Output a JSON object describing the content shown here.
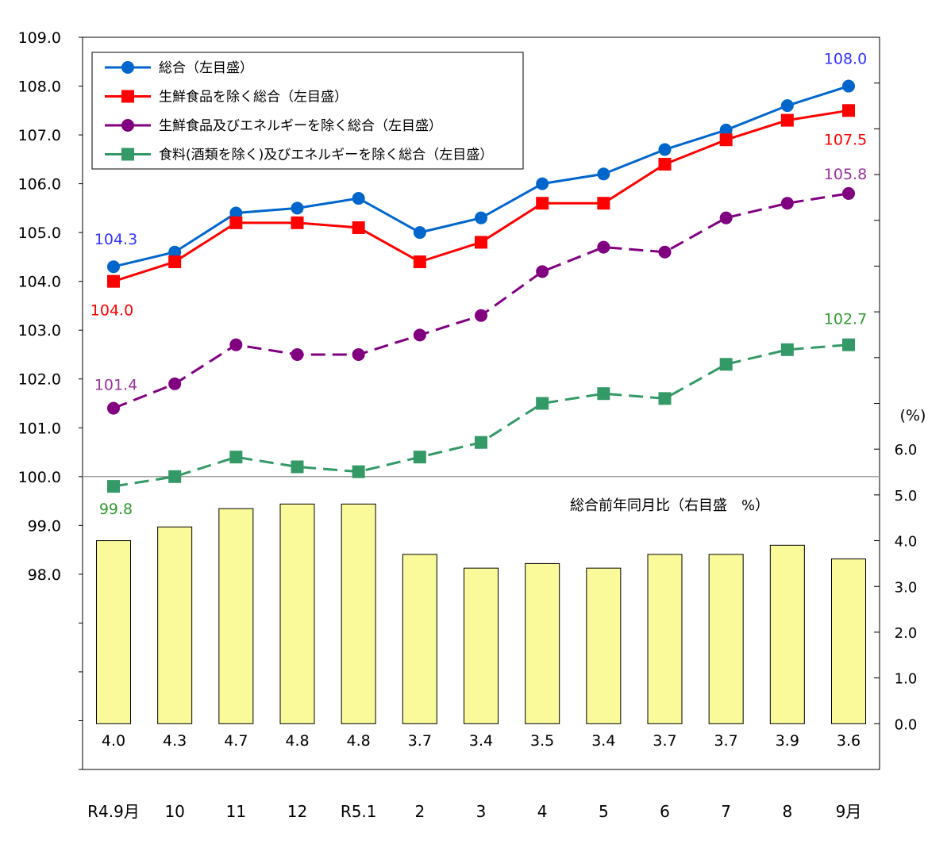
{
  "chart_data": {
    "type": "line+bar",
    "categories": [
      "R4.9月",
      "10",
      "11",
      "12",
      "R5.1",
      "2",
      "3",
      "4",
      "5",
      "6",
      "7",
      "8",
      "9月"
    ],
    "left_axis": {
      "range": [
        94,
        109
      ],
      "tick_labels": [
        "98.0",
        "99.0",
        "100.0",
        "101.0",
        "102.0",
        "103.0",
        "104.0",
        "105.0",
        "106.0",
        "107.0",
        "108.0",
        "109.0"
      ],
      "reference_line": 100.0
    },
    "right_axis": {
      "range": [
        -1,
        15
      ],
      "unit_label": "(%)",
      "tick_labels": [
        "0.0",
        "1.0",
        "2.0",
        "3.0",
        "4.0",
        "5.0",
        "6.0"
      ]
    },
    "series": [
      {
        "name": "総合（左目盛）",
        "axis": "left",
        "color": "#0066CC",
        "marker": "circle",
        "dash": false,
        "values": [
          104.3,
          104.6,
          105.4,
          105.5,
          105.7,
          105.0,
          105.3,
          106.0,
          106.2,
          106.7,
          107.1,
          107.6,
          108.0
        ],
        "labels": {
          "first": "104.3",
          "last": "108.0"
        },
        "label_color": "#3333FF"
      },
      {
        "name": "生鮮食品を除く総合（左目盛）",
        "axis": "left",
        "color": "#FF0000",
        "marker": "square",
        "dash": false,
        "values": [
          104.0,
          104.4,
          105.2,
          105.2,
          105.1,
          104.4,
          104.8,
          105.6,
          105.6,
          106.4,
          106.9,
          107.3,
          107.5
        ],
        "labels": {
          "first": "104.0",
          "last": "107.5"
        },
        "label_color": "#FF0000"
      },
      {
        "name": "生鮮食品及びエネルギーを除く総合（左目盛）",
        "axis": "left",
        "color": "#800080",
        "marker": "circle",
        "dash": true,
        "values": [
          101.4,
          101.9,
          102.7,
          102.5,
          102.5,
          102.9,
          103.3,
          104.2,
          104.7,
          104.6,
          105.3,
          105.6,
          105.8
        ],
        "labels": {
          "first": "101.4",
          "last": "105.8"
        },
        "label_color": "#993399"
      },
      {
        "name": "食料(酒類を除く)及びエネルギーを除く総合（左目盛）",
        "axis": "left",
        "color": "#339966",
        "marker": "square",
        "dash": true,
        "values": [
          99.8,
          100.0,
          100.4,
          100.2,
          100.1,
          100.4,
          100.7,
          101.5,
          101.7,
          101.6,
          102.3,
          102.6,
          102.7
        ],
        "labels": {
          "first": "99.8",
          "last": "102.7"
        },
        "label_color": "#339933"
      }
    ],
    "bars": {
      "name": "総合前年同月比（右目盛　%）",
      "axis": "right",
      "color": "#FAFA9B",
      "values": [
        4.0,
        4.3,
        4.7,
        4.8,
        4.8,
        3.7,
        3.4,
        3.5,
        3.4,
        3.7,
        3.7,
        3.9,
        3.6
      ],
      "labels": [
        "4.0",
        "4.3",
        "4.7",
        "4.8",
        "4.8",
        "3.7",
        "3.4",
        "3.5",
        "3.4",
        "3.7",
        "3.7",
        "3.9",
        "3.6"
      ]
    },
    "legend_placement": "top-left",
    "grid": false
  }
}
